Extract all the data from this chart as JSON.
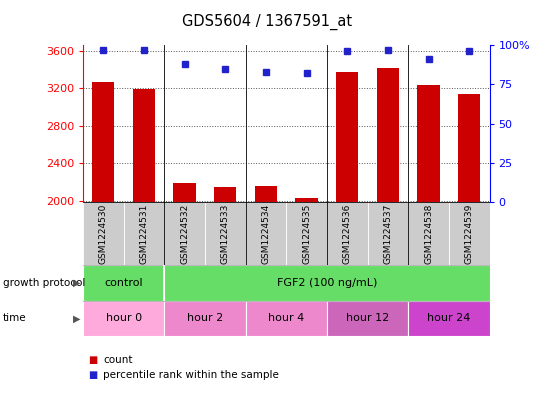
{
  "title": "GDS5604 / 1367591_at",
  "samples": [
    "GSM1224530",
    "GSM1224531",
    "GSM1224532",
    "GSM1224533",
    "GSM1224534",
    "GSM1224535",
    "GSM1224536",
    "GSM1224537",
    "GSM1224538",
    "GSM1224539"
  ],
  "bar_values": [
    3270,
    3190,
    2185,
    2145,
    2160,
    2030,
    3370,
    3420,
    3230,
    3140
  ],
  "percentile_values": [
    97,
    97,
    88,
    85,
    83,
    82,
    96,
    97,
    91,
    96
  ],
  "ylim_left": [
    1980,
    3660
  ],
  "ylim_right": [
    0,
    100
  ],
  "yticks_left": [
    2000,
    2400,
    2800,
    3200,
    3600
  ],
  "yticks_right": [
    0,
    25,
    50,
    75,
    100
  ],
  "bar_color": "#cc0000",
  "dot_color": "#2222cc",
  "bar_width": 0.55,
  "bg_color": "#ffffff",
  "grid_color": "#555555",
  "cell_bg_color": "#cccccc",
  "gp_color": "#66dd66",
  "time_colors": [
    "#ffaadd",
    "#ee88cc",
    "#ee88cc",
    "#cc66bb",
    "#cc44cc"
  ],
  "gp_groups": [
    {
      "text": "control",
      "start": 0,
      "end": 2
    },
    {
      "text": "FGF2 (100 ng/mL)",
      "start": 2,
      "end": 10
    }
  ],
  "time_groups": [
    {
      "text": "hour 0",
      "start": 0,
      "end": 2
    },
    {
      "text": "hour 2",
      "start": 2,
      "end": 4
    },
    {
      "text": "hour 4",
      "start": 4,
      "end": 6
    },
    {
      "text": "hour 12",
      "start": 6,
      "end": 8
    },
    {
      "text": "hour 24",
      "start": 8,
      "end": 10
    }
  ],
  "legend_items": [
    {
      "label": "count",
      "color": "#cc0000"
    },
    {
      "label": "percentile rank within the sample",
      "color": "#2222cc"
    }
  ]
}
